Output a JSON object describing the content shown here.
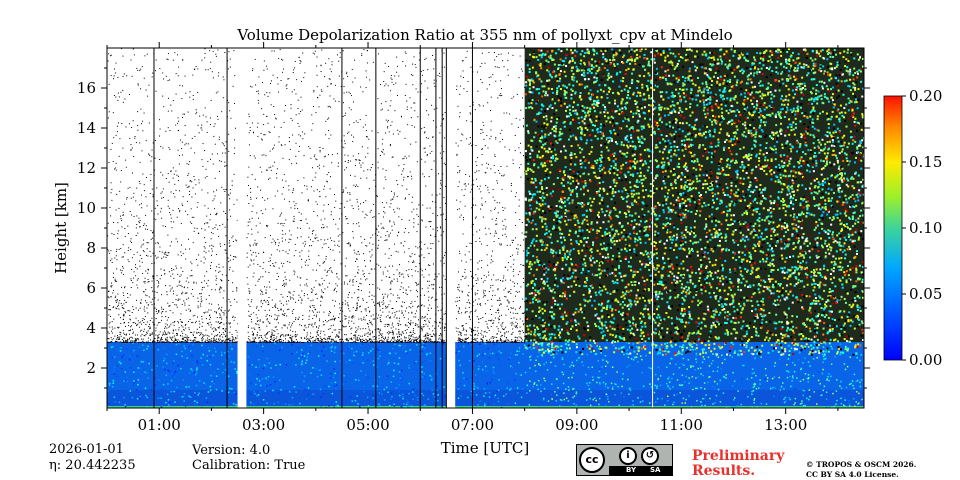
{
  "chart_data": {
    "type": "heatmap",
    "title": "Volume Depolarization Ratio at 355 nm of pollyxt_cpv at Mindelo",
    "xlabel": "Time [UTC]",
    "ylabel": "Height [km]",
    "x_range_hours": [
      0,
      14.5
    ],
    "xlim": [
      0,
      14.5
    ],
    "ylim": [
      0,
      18
    ],
    "x_ticks": [
      1,
      3,
      5,
      7,
      9,
      11,
      13
    ],
    "x_tick_labels": [
      "01:00",
      "03:00",
      "05:00",
      "07:00",
      "09:00",
      "11:00",
      "13:00"
    ],
    "y_ticks": [
      2,
      4,
      6,
      8,
      10,
      12,
      14,
      16
    ],
    "y_tick_labels": [
      "2",
      "4",
      "6",
      "8",
      "10",
      "12",
      "14",
      "16"
    ],
    "colorbar": {
      "min": 0.0,
      "max": 0.2,
      "ticks": [
        0.0,
        0.05,
        0.1,
        0.15,
        0.2
      ],
      "tick_labels": [
        "0.00",
        "0.05",
        "0.10",
        "0.15",
        "0.20"
      ],
      "colormap": "jet"
    },
    "boundary_layer_top_km": 3.3,
    "high_noise_start_hour": 8.0,
    "data_gaps_hours": [
      [
        2.5,
        2.67
      ],
      [
        6.5,
        6.67
      ]
    ],
    "profile_lines_hours": [
      0.9,
      2.3,
      4.5,
      5.15,
      6.0,
      6.3,
      6.42,
      6.5,
      7.0,
      10.45
    ]
  },
  "footer": {
    "date": "2026-01-01",
    "eta": "η: 20.442235",
    "version": "Version: 4.0",
    "calibration": "Calibration: True",
    "cc_letters": "cc",
    "cc_by": "BY",
    "cc_sa": "SA",
    "preliminary_1": "Preliminary",
    "preliminary_2": "Results.",
    "license_1": "© TROPOS & OSCM 2026.",
    "license_2": "CC BY SA 4.0 License."
  }
}
